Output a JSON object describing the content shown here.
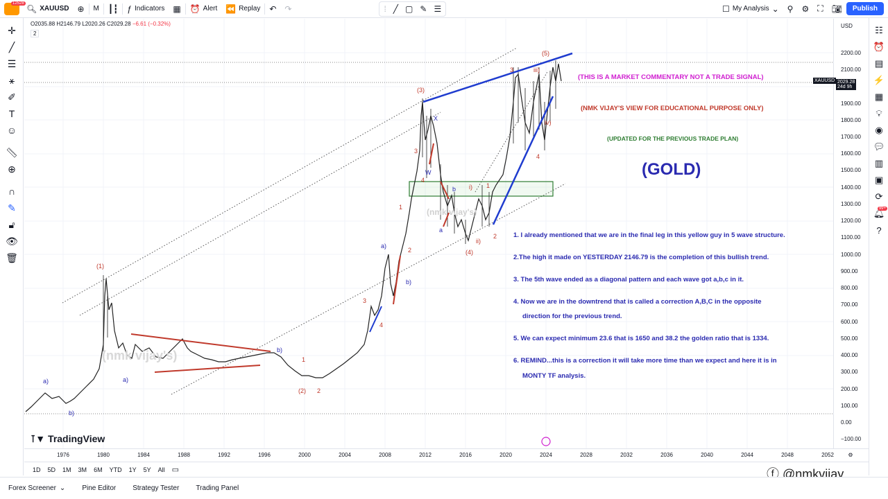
{
  "topbar": {
    "user_badge": "12528",
    "symbol": "XAUUSD",
    "interval": "M",
    "indicators": "Indicators",
    "alert": "Alert",
    "replay": "Replay",
    "layout_name": "My Analysis",
    "publish": "Publish"
  },
  "legend": {
    "ohlc": "O2035.88 H2146.79 L2020.26 C2029.28",
    "change": "−6.61 (−0.32%)",
    "count": "2"
  },
  "price_axis": {
    "currency": "USD",
    "labels": [
      "2200.00",
      "2100.00",
      "2000.00",
      "1900.00",
      "1800.00",
      "1700.00",
      "1600.00",
      "1500.00",
      "1400.00",
      "1300.00",
      "1200.00",
      "1100.00",
      "1000.00",
      "900.00",
      "800.00",
      "700.00",
      "600.00",
      "500.00",
      "400.00",
      "300.00",
      "200.00",
      "100.00",
      "0.00",
      "−100.00"
    ],
    "symbol_tag": "XAUUSD",
    "last_price": "2029.28",
    "countdown": "24d 9h"
  },
  "time_axis": {
    "labels": [
      "1976",
      "1980",
      "1984",
      "1988",
      "1992",
      "1996",
      "2000",
      "2004",
      "2008",
      "2012",
      "2016",
      "2020",
      "2024",
      "2028",
      "2032",
      "2036",
      "2040",
      "2044",
      "2048",
      "2052"
    ]
  },
  "range_buttons": [
    "1D",
    "5D",
    "1M",
    "3M",
    "6M",
    "YTD",
    "1Y",
    "5Y",
    "All"
  ],
  "bottom_tabs": [
    "Forex Screener",
    "Pine Editor",
    "Strategy Tester",
    "Trading Panel"
  ],
  "brand": "TradingView",
  "watermark_text": "@nmkvijay",
  "chart_watermark": "(nmk vijay's)",
  "annotations": {
    "market_commentary": "(THIS IS A MARKET COMMENTARY NOT A TRADE SIGNAL)",
    "educational": "(NMK VIJAY'S VIEW FOR EDUCATIONAL PURPOSE ONLY)",
    "updated": "(UPDATED FOR THE PREVIOUS TRADE PLAN)",
    "gold": "(GOLD)",
    "notes": [
      "1. I already mentioned that we are in the final leg in this yellow guy in 5 wave structure.",
      "2.The high it made on YESTERDAY 2146.79 is the completion of this bullish trend.",
      "3. The 5th wave ended as a diagonal pattern and each wave got a,b,c in it.",
      "4. Now we are in the downtrend that is called a correction A,B,C in the opposite",
      "direction for the previous trend.",
      "5. We can expect minimum 23.6 that is 1650 and 38.2 the golden ratio that is 1334.",
      "6. REMIND...this is a correction it will take more time than we expect and here it is in",
      "MONTY TF analysis."
    ]
  },
  "wave_labels": {
    "w1": "(1)",
    "w2": "(2)",
    "w3": "(3)",
    "w4": "(4)",
    "w5": "(5)",
    "a": "a)",
    "b": "b)",
    "x": "X",
    "w": "W",
    "i": "i)",
    "ii": "ii)",
    "iii": "iii)",
    "iv": "iv)",
    "n1": "1",
    "n2": "2",
    "n3": "3",
    "n4": "4",
    "la": "a",
    "lb": "b"
  },
  "colors": {
    "accent": "#2962ff",
    "note_blue": "#2a2ab0",
    "wave_red": "#c0392b",
    "magenta": "#d020d0",
    "green_box": "#2e7d32"
  }
}
